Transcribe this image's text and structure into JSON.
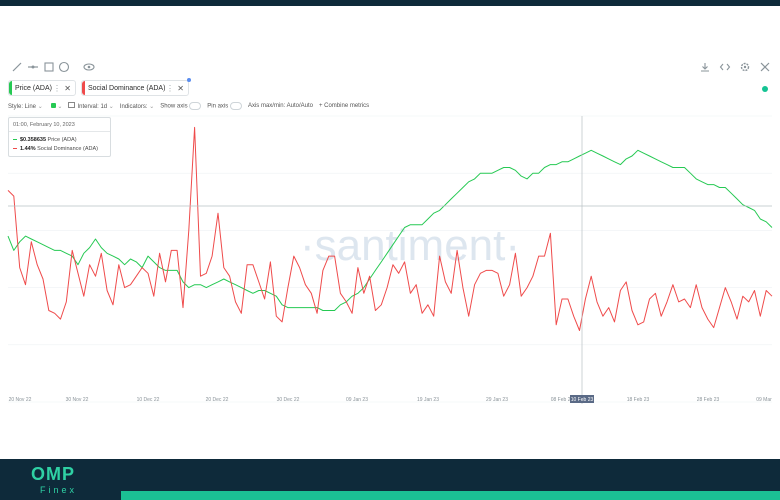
{
  "toolbar": {
    "left_icons": [
      "pen-icon",
      "line-icon",
      "note-icon",
      "emoji-icon",
      "eye-icon"
    ],
    "right_icons": [
      "download-icon",
      "embed-code-icon",
      "settings-icon",
      "close-icon"
    ]
  },
  "metrics": [
    {
      "label": "Price (ADA)",
      "color": "#26c953"
    },
    {
      "label": "Social Dominance (ADA)",
      "color": "#ef4b4b"
    }
  ],
  "settings": {
    "style": "Style: Line",
    "interval": "Interval: 1d",
    "indicators": "Indicators:",
    "show_axis": "Show axis",
    "pin_axis": "Pin axis",
    "axis_maxmin": "Axis max/min: Auto/Auto",
    "combine": "Combine metrics"
  },
  "tooltip": {
    "date": "01:00, February 10, 2023",
    "price_value": "$0.358635",
    "price_label": "Price (ADA)",
    "sd_value": "1.44%",
    "sd_label": "Social Dominance (ADA)"
  },
  "watermark": "·santiment·",
  "logo": {
    "main": "OMP",
    "sub": "Finex"
  },
  "chart_data": {
    "type": "line",
    "x_ticks": [
      "20 Nov 22",
      "30 Nov 22",
      "10 Dec 22",
      "20 Dec 22",
      "30 Dec 22",
      "09 Jan 23",
      "19 Jan 23",
      "29 Jan 23",
      "08 Feb 23",
      "10 Feb 23",
      "18 Feb 23",
      "28 Feb 23",
      "09 Mar"
    ],
    "grid": true,
    "legend": "top-left",
    "crosshair_label": "10 Feb 23",
    "series": [
      {
        "name": "Price (ADA)",
        "color": "#26c953",
        "ylim": [
          0,
          100
        ],
        "values": [
          58,
          53,
          56,
          58,
          57,
          56,
          55,
          54,
          53,
          53,
          52,
          51,
          48,
          52,
          54,
          57,
          54,
          52,
          51,
          50,
          48,
          50,
          49,
          47,
          51,
          49,
          47,
          46,
          46,
          46,
          42,
          40,
          41,
          41,
          40,
          41,
          42,
          43,
          42,
          41,
          40,
          39,
          38,
          39,
          39,
          38,
          37,
          34,
          33,
          33,
          33,
          33,
          33,
          33,
          32,
          32,
          32,
          34,
          35,
          37,
          38,
          40,
          43,
          46,
          49,
          52,
          55,
          58,
          61,
          62,
          62,
          62,
          64,
          66,
          67,
          69,
          71,
          73,
          75,
          77,
          78,
          80,
          80,
          80,
          81,
          82,
          82,
          81,
          79,
          78,
          80,
          80,
          82,
          83,
          83,
          84,
          84,
          85,
          86,
          87,
          88,
          87,
          86,
          85,
          84,
          83,
          85,
          86,
          88,
          87,
          86,
          85,
          84,
          83,
          82,
          82,
          82,
          80,
          78,
          77,
          76,
          76,
          75,
          75,
          73,
          71,
          69,
          68,
          67,
          64,
          63,
          61
        ]
      },
      {
        "name": "Social Dominance (ADA)",
        "color": "#ef4b4b",
        "ylim": [
          0,
          100
        ],
        "values": [
          74,
          72,
          47,
          41,
          56,
          48,
          43,
          32,
          31,
          29,
          35,
          53,
          45,
          37,
          48,
          44,
          52,
          39,
          34,
          48,
          40,
          41,
          44,
          47,
          45,
          37,
          52,
          42,
          53,
          53,
          33,
          60,
          96,
          44,
          45,
          51,
          66,
          47,
          44,
          35,
          31,
          48,
          48,
          42,
          36,
          49,
          30,
          28,
          40,
          51,
          47,
          41,
          38,
          31,
          46,
          51,
          51,
          38,
          35,
          31,
          47,
          38,
          44,
          32,
          34,
          40,
          48,
          45,
          49,
          38,
          41,
          31,
          34,
          30,
          51,
          42,
          38,
          53,
          40,
          30,
          41,
          45,
          46,
          46,
          45,
          37,
          41,
          52,
          37,
          40,
          44,
          51,
          51,
          59,
          27,
          36,
          36,
          30,
          25,
          36,
          44,
          35,
          30,
          33,
          28,
          39,
          42,
          32,
          27,
          28,
          36,
          38,
          30,
          35,
          41,
          35,
          36,
          33,
          41,
          33,
          29,
          26,
          33,
          40,
          35,
          29,
          37,
          35,
          39,
          30,
          39,
          37
        ]
      }
    ]
  }
}
